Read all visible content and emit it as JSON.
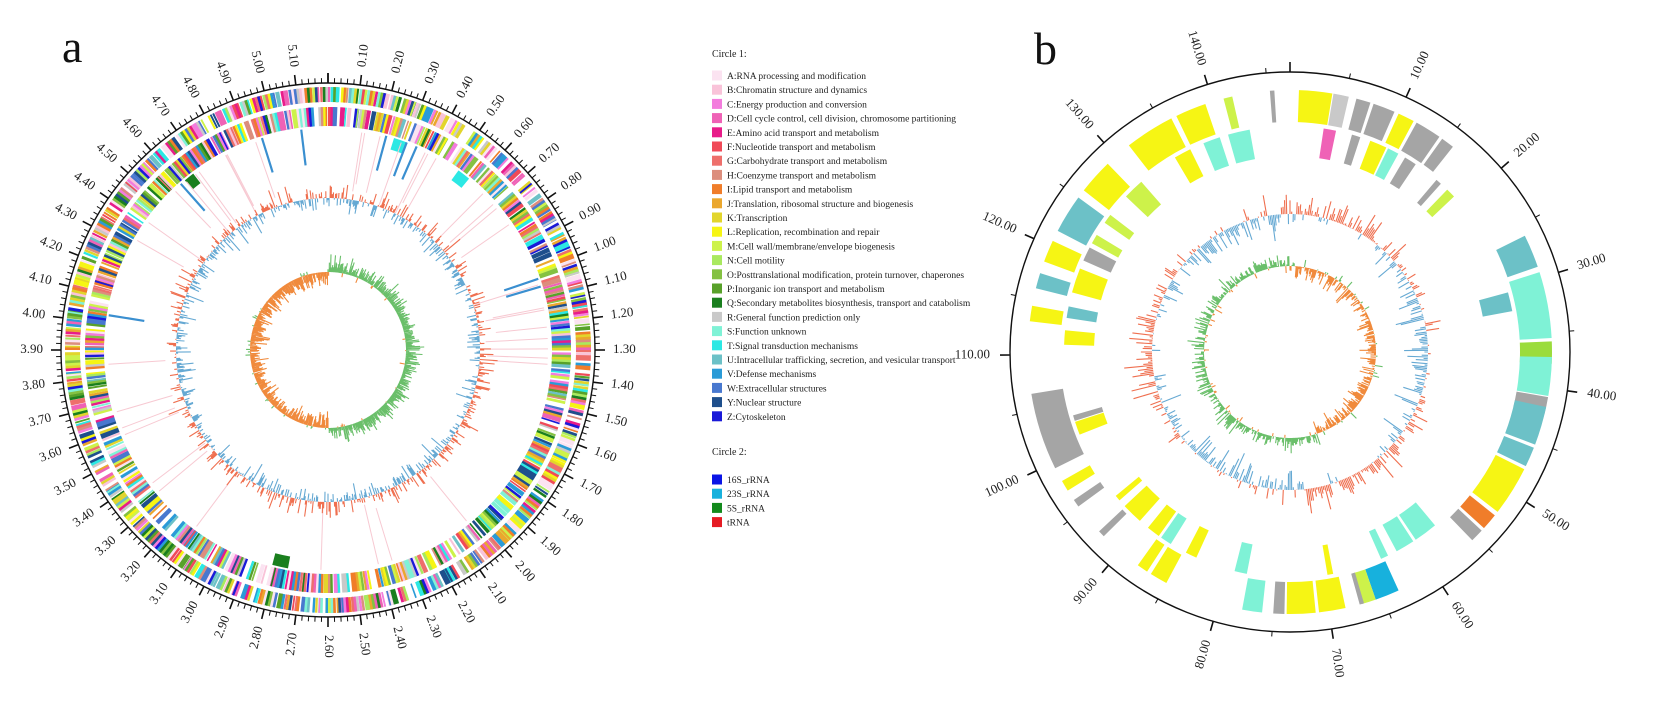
{
  "panels": {
    "a": {
      "label": "a"
    },
    "b": {
      "label": "b"
    }
  },
  "legend": {
    "circle1_title": "Circle 1:",
    "circle1_items": [
      {
        "label": "A:RNA processing and modification",
        "color": "#fbe3f1"
      },
      {
        "label": "B:Chromatin structure and dynamics",
        "color": "#f9c3d9"
      },
      {
        "label": "C:Energy production and conversion",
        "color": "#f37cdd"
      },
      {
        "label": "D:Cell cycle control, cell division, chromosome partitioning",
        "color": "#ef62b6"
      },
      {
        "label": "E:Amino acid transport and metabolism",
        "color": "#e81c8a"
      },
      {
        "label": "F:Nucleotide transport and metabolism",
        "color": "#f04a58"
      },
      {
        "label": "G:Carbohydrate transport and metabolism",
        "color": "#ee6f6b"
      },
      {
        "label": "H:Coenzyme transport and metabolism",
        "color": "#dc8e7d"
      },
      {
        "label": "I:Lipid transport and metabolism",
        "color": "#f07d2a"
      },
      {
        "label": "J:Translation, ribosomal structure and biogenesis",
        "color": "#eba72e"
      },
      {
        "label": "K:Transcription",
        "color": "#e2d52c"
      },
      {
        "label": "L:Replication, recombination and repair",
        "color": "#f6f514"
      },
      {
        "label": "M:Cell wall/membrane/envelope biogenesis",
        "color": "#cdf24a"
      },
      {
        "label": "N:Cell motility",
        "color": "#a9e95f"
      },
      {
        "label": "O:Posttranslational modification, protein turnover, chaperones",
        "color": "#84c142"
      },
      {
        "label": "P:Inorganic ion transport and metabolism",
        "color": "#58a12a"
      },
      {
        "label": "Q:Secondary metabolites biosynthesis, transport and catabolism",
        "color": "#1a7f1e"
      },
      {
        "label": "R:General function prediction only",
        "color": "#c9c9c9"
      },
      {
        "label": "S:Function unknown",
        "color": "#7ff2d6"
      },
      {
        "label": "T:Signal transduction mechanisms",
        "color": "#2ce8e4"
      },
      {
        "label": "U:Intracellular trafficking, secretion, and vesicular transport",
        "color": "#6cc1c7"
      },
      {
        "label": "V:Defense mechanisms",
        "color": "#2a9bd7"
      },
      {
        "label": "W:Extracellular structures",
        "color": "#4878cf"
      },
      {
        "label": "Y:Nuclear structure",
        "color": "#1e4f8c"
      },
      {
        "label": "Z:Cytoskeleton",
        "color": "#1a1ad8"
      }
    ],
    "circle2_title": "Circle 2:",
    "circle2_items": [
      {
        "label": "16S_rRNA",
        "color": "#0a14e6"
      },
      {
        "label": "23S_rRNA",
        "color": "#17b1dd"
      },
      {
        "label": "5S_rRNA",
        "color": "#138a1c"
      },
      {
        "label": "tRNA",
        "color": "#e51b23"
      }
    ]
  },
  "colors": {
    "gc_content_pos": "#ef6f4f",
    "gc_content_neg": "#66a9d3",
    "gc_skew_pos": "#6abf6a",
    "gc_skew_neg": "#f08a3c",
    "ring_gray": "#a5a5a5"
  },
  "chart_data": [
    {
      "type": "circular-genome-map",
      "panel": "a",
      "axis_unit": "Mb",
      "tick_labels": [
        "0.10",
        "0.20",
        "0.30",
        "0.40",
        "0.50",
        "0.60",
        "0.70",
        "0.80",
        "0.90",
        "1.00",
        "1.10",
        "1.20",
        "1.30",
        "1.40",
        "1.50",
        "1.60",
        "1.70",
        "1.80",
        "1.90",
        "2.00",
        "2.10",
        "2.20",
        "2.30",
        "2.40",
        "2.50",
        "2.60",
        "2.70",
        "2.80",
        "2.90",
        "3.00",
        "3.10",
        "3.20",
        "3.30",
        "3.40",
        "3.50",
        "3.60",
        "3.70",
        "3.80",
        "3.90",
        "4.00",
        "4.10",
        "4.20",
        "4.30",
        "4.40",
        "4.50",
        "4.60",
        "4.70",
        "4.80",
        "4.90",
        "5.00",
        "5.10"
      ],
      "genome_length": 5.2,
      "tick_step": 0.1,
      "minor_tick_step": 0.02
    },
    {
      "type": "circular-genome-map",
      "panel": "b",
      "axis_unit": "kb",
      "tick_labels": [
        "10.00",
        "20.00",
        "30.00",
        "40.00",
        "50.00",
        "60.00",
        "70.00",
        "80.00",
        "90.00",
        "100.00",
        "110.00",
        "120.00",
        "130.00",
        "140.00"
      ],
      "genome_length": 147,
      "tick_step": 10,
      "minor_tick_step": 5
    }
  ]
}
